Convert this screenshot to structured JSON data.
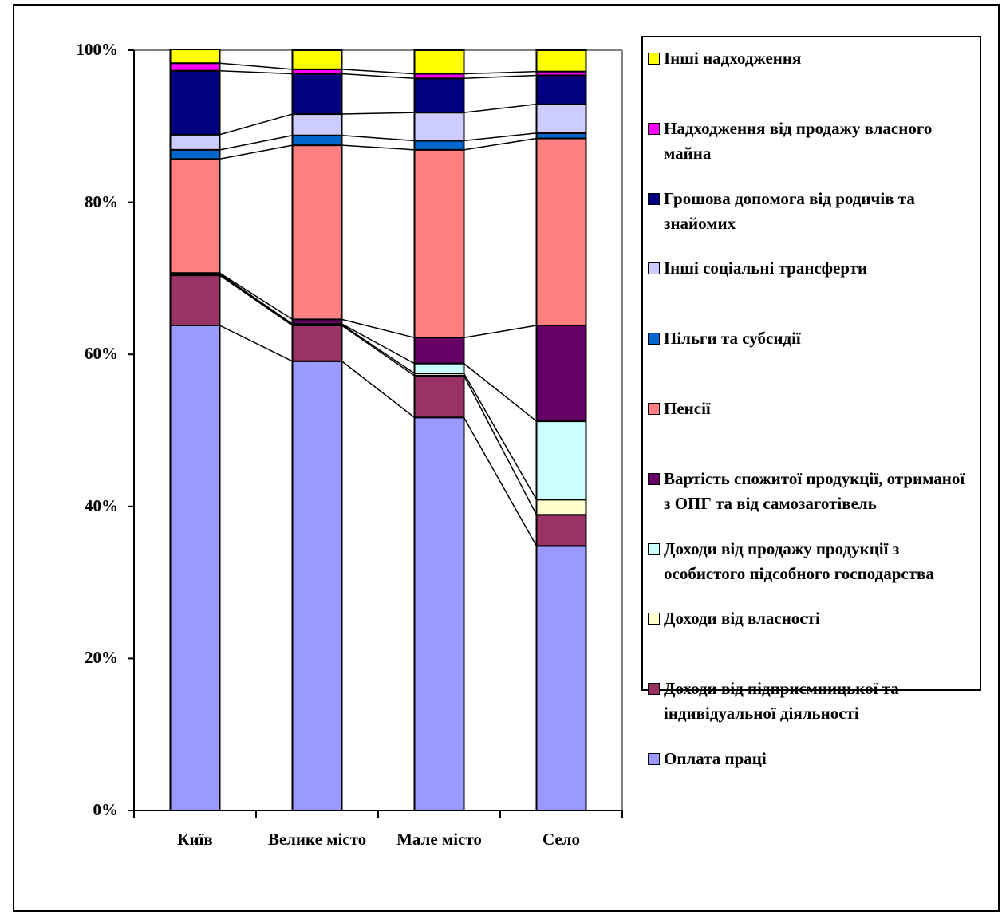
{
  "chart_data": {
    "type": "stacked_bar_percent",
    "categories": [
      "Київ",
      "Велике місто",
      "Мале місто",
      "Село"
    ],
    "ylim": [
      0,
      100
    ],
    "yticks": [
      {
        "value": 0,
        "label": "0%"
      },
      {
        "value": 20,
        "label": "20%"
      },
      {
        "value": 40,
        "label": "40%"
      },
      {
        "value": 60,
        "label": "60%"
      },
      {
        "value": 80,
        "label": "80%"
      },
      {
        "value": 100,
        "label": "100%"
      }
    ],
    "legend": "right",
    "series": [
      {
        "name": "Оплата праці",
        "color": "#9999ff",
        "values": [
          63.8,
          59.1,
          51.7,
          34.8
        ]
      },
      {
        "name": "Доходи від підприємницької та індивідуальної діяльності",
        "color": "#993366",
        "values": [
          6.6,
          4.7,
          5.5,
          4.1
        ]
      },
      {
        "name": "Доходи від власності",
        "color": "#ffffcc",
        "values": [
          0.1,
          0.1,
          0.3,
          2.0
        ]
      },
      {
        "name": "Доходи від продажу продукції з особистого підсобного господарства",
        "color": "#ccffff",
        "values": [
          0.1,
          0.1,
          1.3,
          10.3
        ]
      },
      {
        "name": "Вартість спожитої продукції, отриманої з ОПГ та від самозаготівель",
        "color": "#660066",
        "values": [
          0.1,
          0.6,
          3.4,
          12.6
        ]
      },
      {
        "name": "Пенсії",
        "color": "#ff8080",
        "values": [
          15.0,
          22.9,
          24.7,
          24.6
        ]
      },
      {
        "name": "Пільги та субсидії",
        "color": "#0066cc",
        "values": [
          1.2,
          1.3,
          1.2,
          0.7
        ]
      },
      {
        "name": "Інші соціальні трансферти",
        "color": "#ccccff",
        "values": [
          2.0,
          2.8,
          3.7,
          3.8
        ]
      },
      {
        "name": "Грошова допомога від родичів та знайомих",
        "color": "#000080",
        "values": [
          8.4,
          5.3,
          4.5,
          3.8
        ]
      },
      {
        "name": "Надходження від продажу власного майна",
        "color": "#ff00ff",
        "values": [
          1.0,
          0.6,
          0.6,
          0.5
        ]
      },
      {
        "name": "Інші надходження",
        "color": "#ffff00",
        "values": [
          1.8,
          2.5,
          3.1,
          2.8
        ]
      }
    ]
  }
}
